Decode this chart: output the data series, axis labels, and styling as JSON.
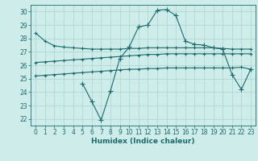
{
  "title": "",
  "xlabel": "Humidex (Indice chaleur)",
  "ylabel": "",
  "bg_color": "#ceecea",
  "grid_color": "#b0d8d5",
  "line_color": "#1a6b6b",
  "xlim": [
    -0.5,
    23.5
  ],
  "ylim": [
    21.5,
    30.5
  ],
  "yticks": [
    22,
    23,
    24,
    25,
    26,
    27,
    28,
    29,
    30
  ],
  "xticks": [
    0,
    1,
    2,
    3,
    4,
    5,
    6,
    7,
    8,
    9,
    10,
    11,
    12,
    13,
    14,
    15,
    16,
    17,
    18,
    19,
    20,
    21,
    22,
    23
  ],
  "line1_x": [
    0,
    1,
    2,
    3,
    4,
    5,
    6,
    7,
    8,
    9,
    10,
    11,
    12,
    13,
    14,
    15,
    16,
    17,
    18,
    19,
    20,
    21,
    22,
    23
  ],
  "line1_y": [
    28.4,
    27.8,
    27.45,
    27.35,
    27.3,
    27.25,
    27.2,
    27.2,
    27.2,
    27.2,
    27.25,
    27.25,
    27.3,
    27.3,
    27.3,
    27.3,
    27.3,
    27.3,
    27.3,
    27.3,
    27.25,
    27.2,
    27.2,
    27.2
  ],
  "line2_x": [
    0,
    1,
    2,
    3,
    4,
    5,
    6,
    7,
    8,
    9,
    10,
    11,
    12,
    13,
    14,
    15,
    16,
    17,
    18,
    19,
    20,
    21,
    22,
    23
  ],
  "line2_y": [
    26.2,
    26.25,
    26.3,
    26.35,
    26.4,
    26.45,
    26.5,
    26.55,
    26.6,
    26.65,
    26.7,
    26.75,
    26.8,
    26.8,
    26.85,
    26.85,
    26.85,
    26.85,
    26.85,
    26.85,
    26.85,
    26.85,
    26.85,
    26.85
  ],
  "line3_x": [
    0,
    1,
    2,
    3,
    4,
    5,
    6,
    7,
    8,
    9,
    10,
    11,
    12,
    13,
    14,
    15,
    16,
    17,
    18,
    19,
    20,
    21,
    22,
    23
  ],
  "line3_y": [
    25.2,
    25.25,
    25.3,
    25.35,
    25.4,
    25.45,
    25.5,
    25.55,
    25.6,
    25.65,
    25.7,
    25.7,
    25.75,
    25.75,
    25.8,
    25.8,
    25.8,
    25.8,
    25.8,
    25.8,
    25.8,
    25.8,
    25.85,
    25.7
  ],
  "line4_x": [
    0,
    1,
    2,
    3,
    4,
    5,
    6,
    7,
    8,
    9,
    10,
    11,
    12,
    13,
    14,
    15,
    16,
    17,
    18,
    19,
    20,
    21,
    22,
    23
  ],
  "line4_y": [
    null,
    null,
    null,
    null,
    null,
    24.65,
    23.3,
    21.9,
    24.1,
    26.5,
    27.35,
    28.85,
    29.0,
    30.1,
    30.15,
    29.7,
    27.8,
    27.55,
    27.5,
    27.3,
    27.2,
    25.3,
    24.2,
    25.7
  ]
}
